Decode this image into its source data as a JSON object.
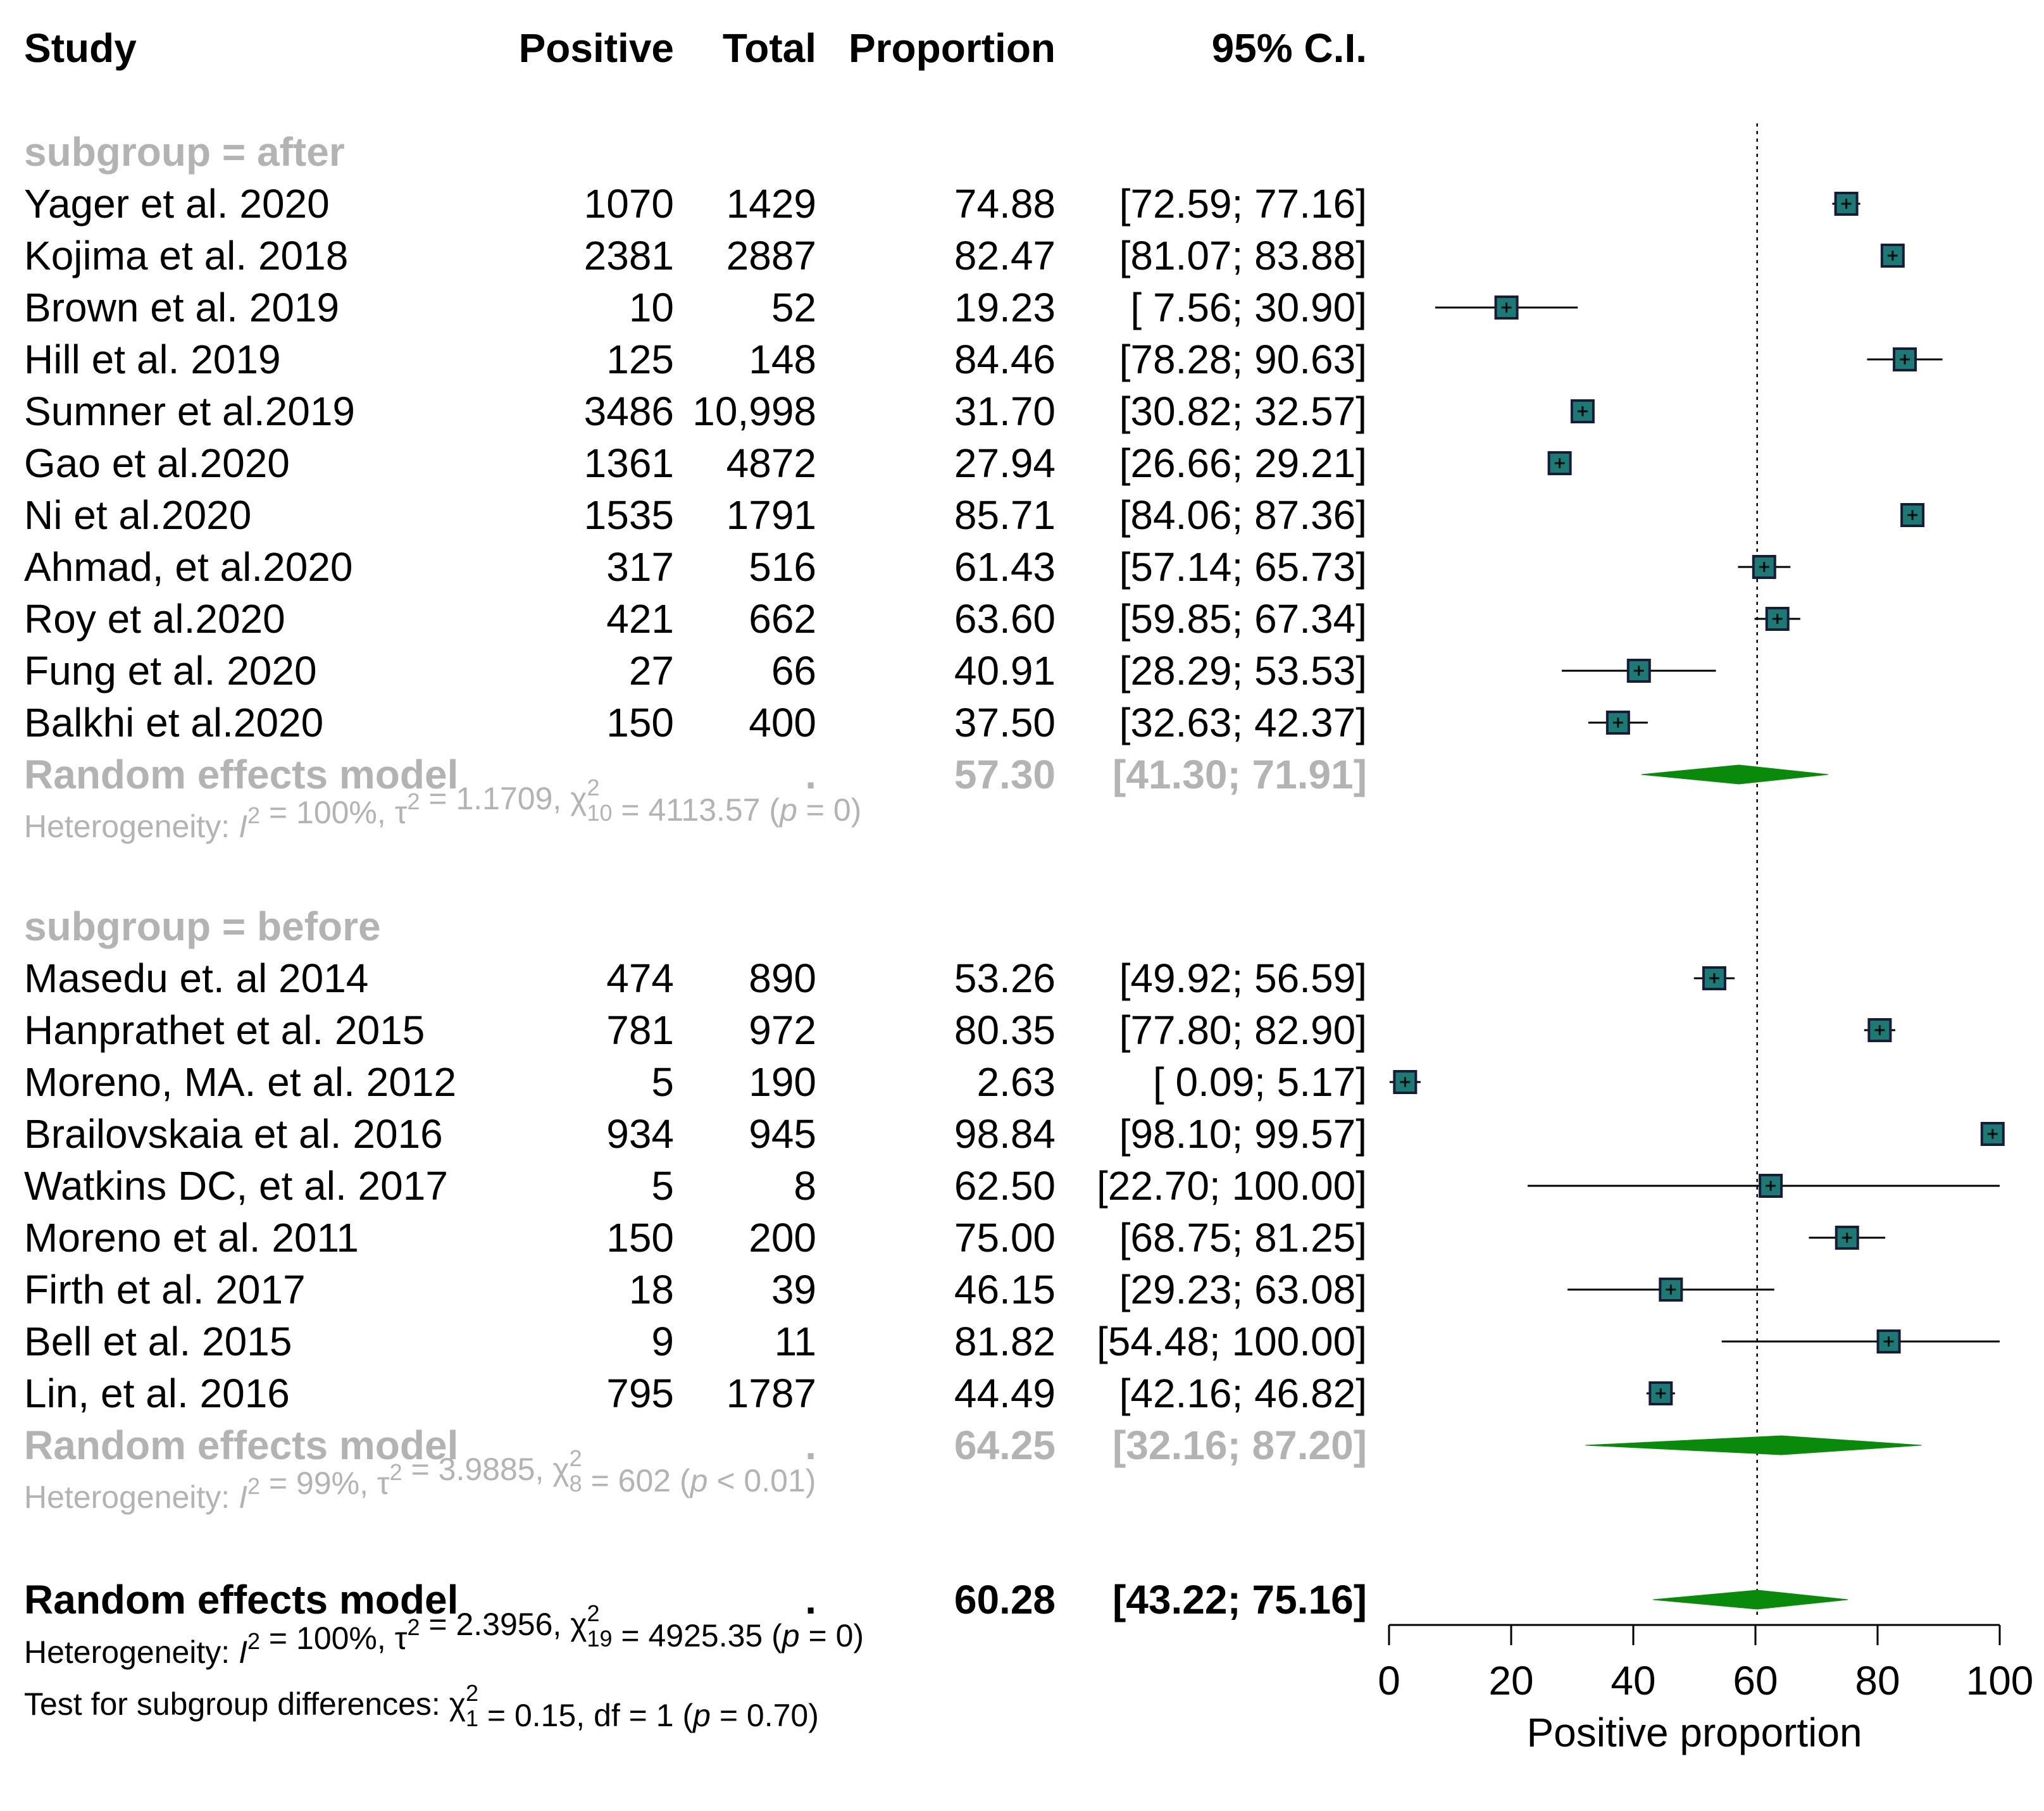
{
  "chart_data": {
    "type": "forest",
    "columns": [
      "Study",
      "Positive",
      "Total",
      "Proportion",
      "95% C.I."
    ],
    "xlabel": "Positive proportion",
    "xlim": [
      0,
      100
    ],
    "xticks": [
      "0",
      "20",
      "40",
      "60",
      "80",
      "100"
    ],
    "reference_line": 60.28,
    "subgroups": [
      {
        "label": "subgroup = after",
        "studies": [
          {
            "study": "Yager et al. 2020",
            "positive": "1070",
            "total": "1429",
            "proportion": 74.88,
            "prop_text": "74.88",
            "ci_low": 72.59,
            "ci_high": 77.16,
            "ci_text": "[72.59;  77.16]"
          },
          {
            "study": "Kojima et al. 2018",
            "positive": "2381",
            "total": "2887",
            "proportion": 82.47,
            "prop_text": "82.47",
            "ci_low": 81.07,
            "ci_high": 83.88,
            "ci_text": "[81.07;  83.88]"
          },
          {
            "study": "Brown et al. 2019",
            "positive": "10",
            "total": "52",
            "proportion": 19.23,
            "prop_text": "19.23",
            "ci_low": 7.56,
            "ci_high": 30.9,
            "ci_text": "[ 7.56;  30.90]"
          },
          {
            "study": "Hill et al. 2019",
            "positive": "125",
            "total": "148",
            "proportion": 84.46,
            "prop_text": "84.46",
            "ci_low": 78.28,
            "ci_high": 90.63,
            "ci_text": "[78.28;  90.63]"
          },
          {
            "study": "Sumner et al.2019",
            "positive": "3486",
            "total": "10,998",
            "proportion": 31.7,
            "prop_text": "31.70",
            "ci_low": 30.82,
            "ci_high": 32.57,
            "ci_text": "[30.82;  32.57]"
          },
          {
            "study": "Gao et al.2020",
            "positive": "1361",
            "total": "4872",
            "proportion": 27.94,
            "prop_text": "27.94",
            "ci_low": 26.66,
            "ci_high": 29.21,
            "ci_text": "[26.66;  29.21]"
          },
          {
            "study": "Ni et al.2020",
            "positive": "1535",
            "total": "1791",
            "proportion": 85.71,
            "prop_text": "85.71",
            "ci_low": 84.06,
            "ci_high": 87.36,
            "ci_text": "[84.06;  87.36]"
          },
          {
            "study": "Ahmad, et al.2020",
            "positive": "317",
            "total": "516",
            "proportion": 61.43,
            "prop_text": "61.43",
            "ci_low": 57.14,
            "ci_high": 65.73,
            "ci_text": "[57.14;  65.73]"
          },
          {
            "study": "Roy et al.2020",
            "positive": "421",
            "total": "662",
            "proportion": 63.6,
            "prop_text": "63.60",
            "ci_low": 59.85,
            "ci_high": 67.34,
            "ci_text": "[59.85;  67.34]"
          },
          {
            "study": "Fung et al. 2020",
            "positive": "27",
            "total": "66",
            "proportion": 40.91,
            "prop_text": "40.91",
            "ci_low": 28.29,
            "ci_high": 53.53,
            "ci_text": "[28.29;  53.53]"
          },
          {
            "study": "Balkhi et al.2020",
            "positive": "150",
            "total": "400",
            "proportion": 37.5,
            "prop_text": "37.50",
            "ci_low": 32.63,
            "ci_high": 42.37,
            "ci_text": "[32.63;  42.37]"
          }
        ],
        "model": {
          "label": "Random effects model",
          "dot": ".",
          "proportion": 57.3,
          "prop_text": "57.30",
          "ci_low": 41.3,
          "ci_high": 71.91,
          "ci_text": "[41.30;  71.91]"
        },
        "heterogeneity": {
          "prefix": "Heterogeneity: ",
          "i2_label": "I",
          "i2_value": " = 100%, ",
          "tau": "τ",
          "tau_value": " = 1.1709, ",
          "chi": "χ",
          "chi_df": "10",
          "chi_value": " = 4113.57 (",
          "p_label": "p",
          "p_value": " = 0)"
        }
      },
      {
        "label": "subgroup = before",
        "studies": [
          {
            "study": "Masedu et. al 2014",
            "positive": "474",
            "total": "890",
            "proportion": 53.26,
            "prop_text": "53.26",
            "ci_low": 49.92,
            "ci_high": 56.59,
            "ci_text": "[49.92;  56.59]"
          },
          {
            "study": "Hanprathet et al. 2015",
            "positive": "781",
            "total": "972",
            "proportion": 80.35,
            "prop_text": "80.35",
            "ci_low": 77.8,
            "ci_high": 82.9,
            "ci_text": "[77.80;  82.90]"
          },
          {
            "study": "Moreno, MA. et al. 2012",
            "positive": "5",
            "total": "190",
            "proportion": 2.63,
            "prop_text": "2.63",
            "ci_low": 0.09,
            "ci_high": 5.17,
            "ci_text": "[ 0.09;    5.17]"
          },
          {
            "study": "Brailovskaia  et al. 2016",
            "positive": "934",
            "total": "945",
            "proportion": 98.84,
            "prop_text": "98.84",
            "ci_low": 98.1,
            "ci_high": 99.57,
            "ci_text": "[98.10;  99.57]"
          },
          {
            "study": "Watkins DC, et al. 2017",
            "positive": "5",
            "total": "8",
            "proportion": 62.5,
            "prop_text": "62.50",
            "ci_low": 22.7,
            "ci_high": 100.0,
            "ci_text": "[22.70; 100.00]"
          },
          {
            "study": "Moreno et al. 2011",
            "positive": "150",
            "total": "200",
            "proportion": 75.0,
            "prop_text": "75.00",
            "ci_low": 68.75,
            "ci_high": 81.25,
            "ci_text": "[68.75;  81.25]"
          },
          {
            "study": "Firth et al. 2017",
            "positive": "18",
            "total": "39",
            "proportion": 46.15,
            "prop_text": "46.15",
            "ci_low": 29.23,
            "ci_high": 63.08,
            "ci_text": "[29.23;  63.08]"
          },
          {
            "study": "Bell et al. 2015",
            "positive": "9",
            "total": "11",
            "proportion": 81.82,
            "prop_text": "81.82",
            "ci_low": 54.48,
            "ci_high": 100.0,
            "ci_text": "[54.48; 100.00]"
          },
          {
            "study": "Lin, et al. 2016",
            "positive": "795",
            "total": "1787",
            "proportion": 44.49,
            "prop_text": "44.49",
            "ci_low": 42.16,
            "ci_high": 46.82,
            "ci_text": "[42.16;  46.82]"
          }
        ],
        "model": {
          "label": "Random effects model",
          "dot": ".",
          "proportion": 64.25,
          "prop_text": "64.25",
          "ci_low": 32.16,
          "ci_high": 87.2,
          "ci_text": "[32.16;  87.20]"
        },
        "heterogeneity": {
          "prefix": "Heterogeneity: ",
          "i2_label": "I",
          "i2_value": " = 99%, ",
          "tau": "τ",
          "tau_value": " = 3.9885, ",
          "chi": "χ",
          "chi_df": "8",
          "chi_value": " = 602 (",
          "p_label": "p",
          "p_value": " < 0.01)"
        }
      }
    ],
    "overall": {
      "label": "Random effects model",
      "dot": ".",
      "proportion": 60.28,
      "prop_text": "60.28",
      "ci_low": 43.22,
      "ci_high": 75.16,
      "ci_text": "[43.22;  75.16]",
      "heterogeneity": {
        "prefix": "Heterogeneity: ",
        "i2_label": "I",
        "i2_value": " = 100%, ",
        "tau": "τ",
        "tau_value": " = 2.3956, ",
        "chi": "χ",
        "chi_df": "19",
        "chi_value": " = 4925.35 (",
        "p_label": "p",
        "p_value": " = 0)"
      },
      "subgroup_test": {
        "prefix": "Test for subgroup differences: ",
        "chi": "χ",
        "chi_df": "1",
        "chi_value": " = 0.15, df = 1 (",
        "p_label": "p",
        "p_value": " = 0.70)"
      }
    },
    "colors": {
      "box_fill": "#1b7a74",
      "box_stroke": "#1a1a3a",
      "diamond": "#0a8a0a",
      "grey_text": "#b3b3b3",
      "line": "#000000"
    }
  }
}
